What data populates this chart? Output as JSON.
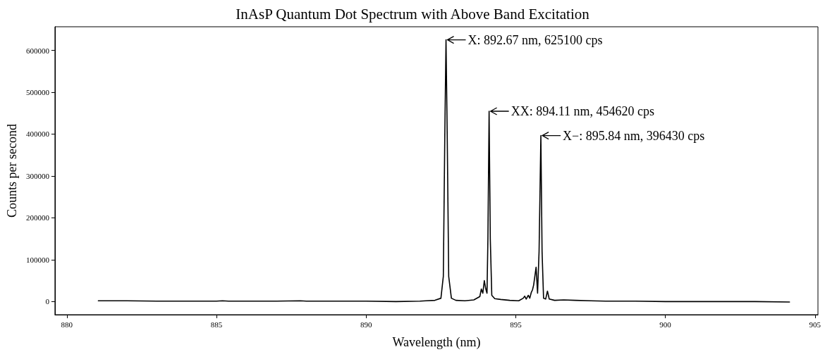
{
  "chart_data": {
    "type": "line",
    "title": "InAsP Quantum Dot Spectrum with Above Band Excitation",
    "xlabel": "Wavelength (nm)",
    "ylabel": "Counts per second",
    "x": [
      881.05,
      881.5,
      882,
      883,
      884,
      885,
      885.2,
      885.4,
      886,
      887,
      887.8,
      888,
      889,
      890,
      891,
      891.8,
      892.0,
      892.3,
      892.5,
      892.58,
      892.63,
      892.67,
      892.71,
      892.76,
      892.85,
      893.0,
      893.3,
      893.6,
      893.8,
      893.85,
      893.9,
      893.95,
      894.0,
      894.04,
      894.07,
      894.11,
      894.15,
      894.2,
      894.3,
      894.5,
      894.8,
      895.1,
      895.25,
      895.3,
      895.35,
      895.42,
      895.47,
      895.52,
      895.56,
      895.6,
      895.68,
      895.73,
      895.78,
      895.84,
      895.88,
      895.93,
      896.0,
      896.06,
      896.12,
      896.3,
      896.6,
      897,
      897.5,
      898,
      899,
      900,
      901,
      902,
      903,
      904.15
    ],
    "series": [
      {
        "color": "#000000",
        "values": [
          2000,
          2000,
          2000,
          1000,
          1000,
          1000,
          2000,
          1000,
          1000,
          1000,
          2000,
          1000,
          1000,
          1000,
          0,
          1000,
          2000,
          3000,
          8000,
          60000,
          400000,
          625100,
          400000,
          60000,
          8000,
          3000,
          2000,
          4000,
          12000,
          30000,
          20000,
          50000,
          30000,
          20000,
          150000,
          454620,
          150000,
          15000,
          7000,
          5000,
          3000,
          2000,
          8000,
          13000,
          6000,
          15000,
          8000,
          22000,
          28000,
          40000,
          82000,
          20000,
          120000,
          396430,
          120000,
          8000,
          6000,
          25000,
          6000,
          3000,
          4000,
          3000,
          2000,
          1000,
          1000,
          0,
          0,
          0,
          0,
          -1000
        ]
      }
    ],
    "xlim": [
      879.6,
      905.1
    ],
    "xticks": [
      880,
      885,
      890,
      895,
      900,
      905
    ],
    "ylim": [
      -31300,
      656400
    ],
    "yticks": [
      0,
      100000,
      200000,
      300000,
      400000,
      500000,
      600000
    ],
    "grid": false,
    "marker": "none",
    "line_style": "solid",
    "annotations": [
      {
        "text": "X: 892.67 nm, 625100 cps",
        "x": 892.67,
        "y": 625100
      },
      {
        "text": "XX: 894.11 nm, 454620 cps",
        "x": 894.11,
        "y": 454620
      },
      {
        "text": "X−: 895.84 nm, 396430 cps",
        "x": 895.84,
        "y": 396430
      }
    ]
  }
}
